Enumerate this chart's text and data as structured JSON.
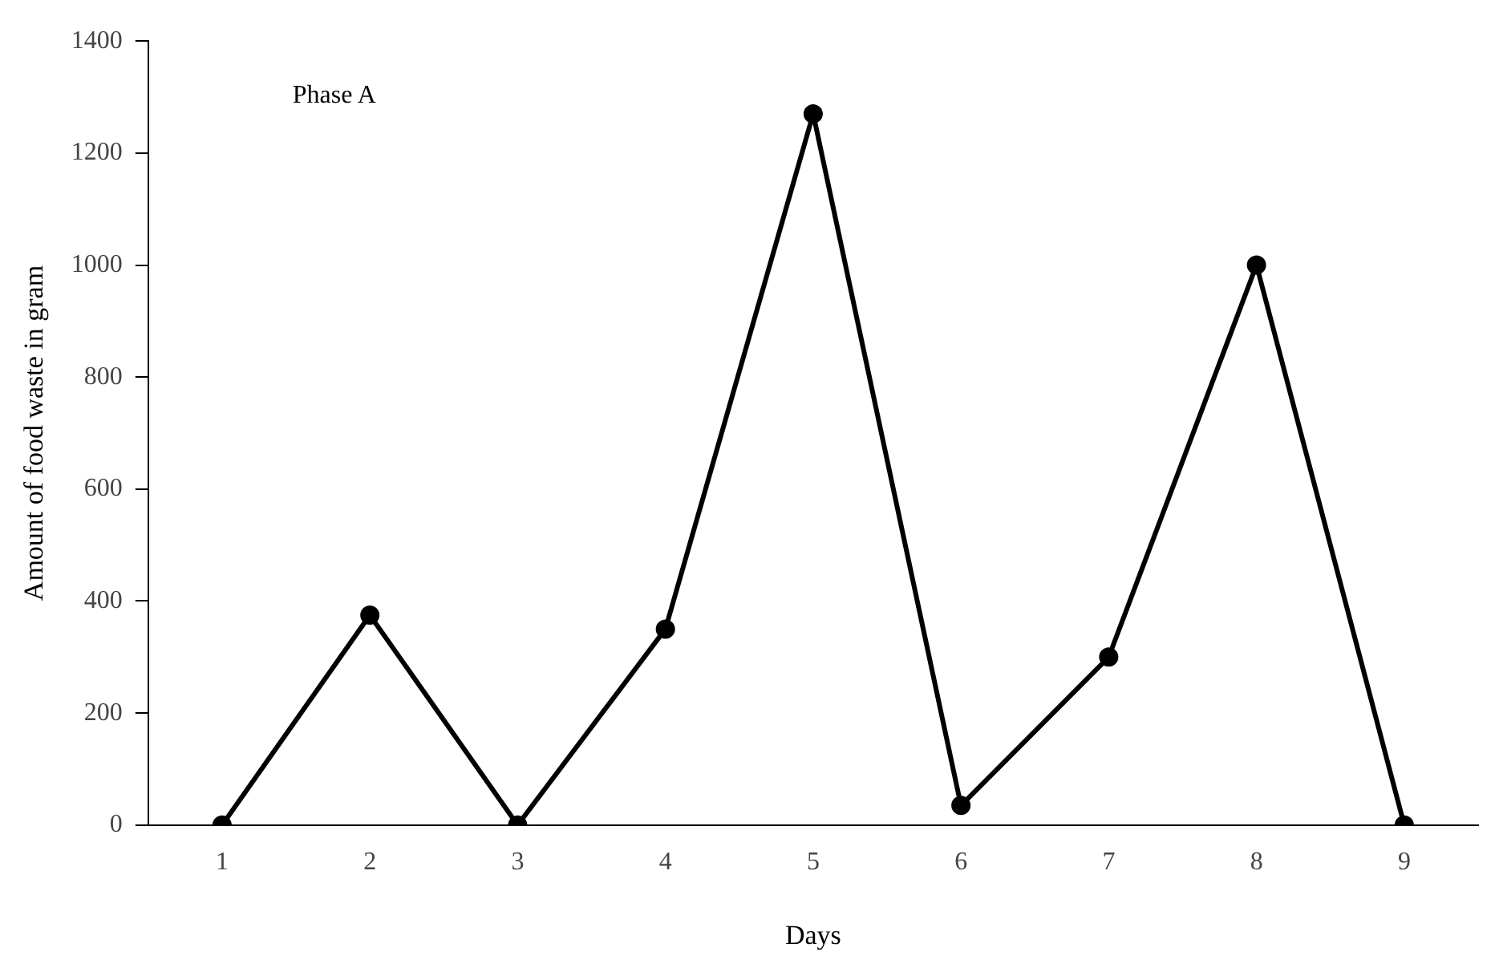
{
  "chart_data": {
    "type": "line",
    "xlabel": "Days",
    "ylabel": "Amount of food waste in gram",
    "categories": [
      "1",
      "2",
      "3",
      "4",
      "5",
      "6",
      "7",
      "8",
      "9"
    ],
    "series": [
      {
        "color": "#000000",
        "values": [
          0,
          375,
          0,
          350,
          1270,
          35,
          300,
          1000,
          0
        ]
      }
    ],
    "ylim": [
      0,
      1400
    ],
    "yticks": [
      0,
      200,
      400,
      600,
      800,
      1000,
      1200,
      1400
    ],
    "grid": false,
    "legend": false,
    "marker": "circle",
    "line_style": "solid",
    "annotations": [
      "Phase A"
    ]
  }
}
